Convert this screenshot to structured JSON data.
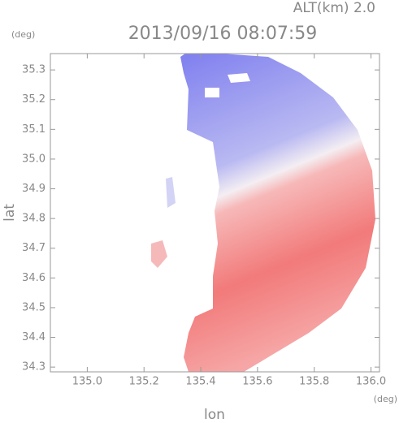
{
  "chart_data": {
    "type": "image",
    "title": "2013/09/16 08:07:59",
    "annotation": "ALT(km) 2.0",
    "x_label": "lon",
    "y_label": "lat",
    "x_unit": "(deg)",
    "y_unit": "(deg)",
    "xlim": [
      134.87,
      136.03
    ],
    "ylim": [
      34.284,
      35.355
    ],
    "xticks": [
      {
        "value": 135.0,
        "label": "135.0"
      },
      135.2,
      135.4,
      135.6,
      135.8,
      {
        "value": 136.0,
        "label": "136.0"
      }
    ],
    "yticks": [
      34.3,
      34.4,
      34.5,
      34.6,
      34.7,
      34.8,
      34.9,
      {
        "value": 35.0,
        "label": "35.0"
      },
      35.1,
      35.2,
      35.3
    ]
  }
}
